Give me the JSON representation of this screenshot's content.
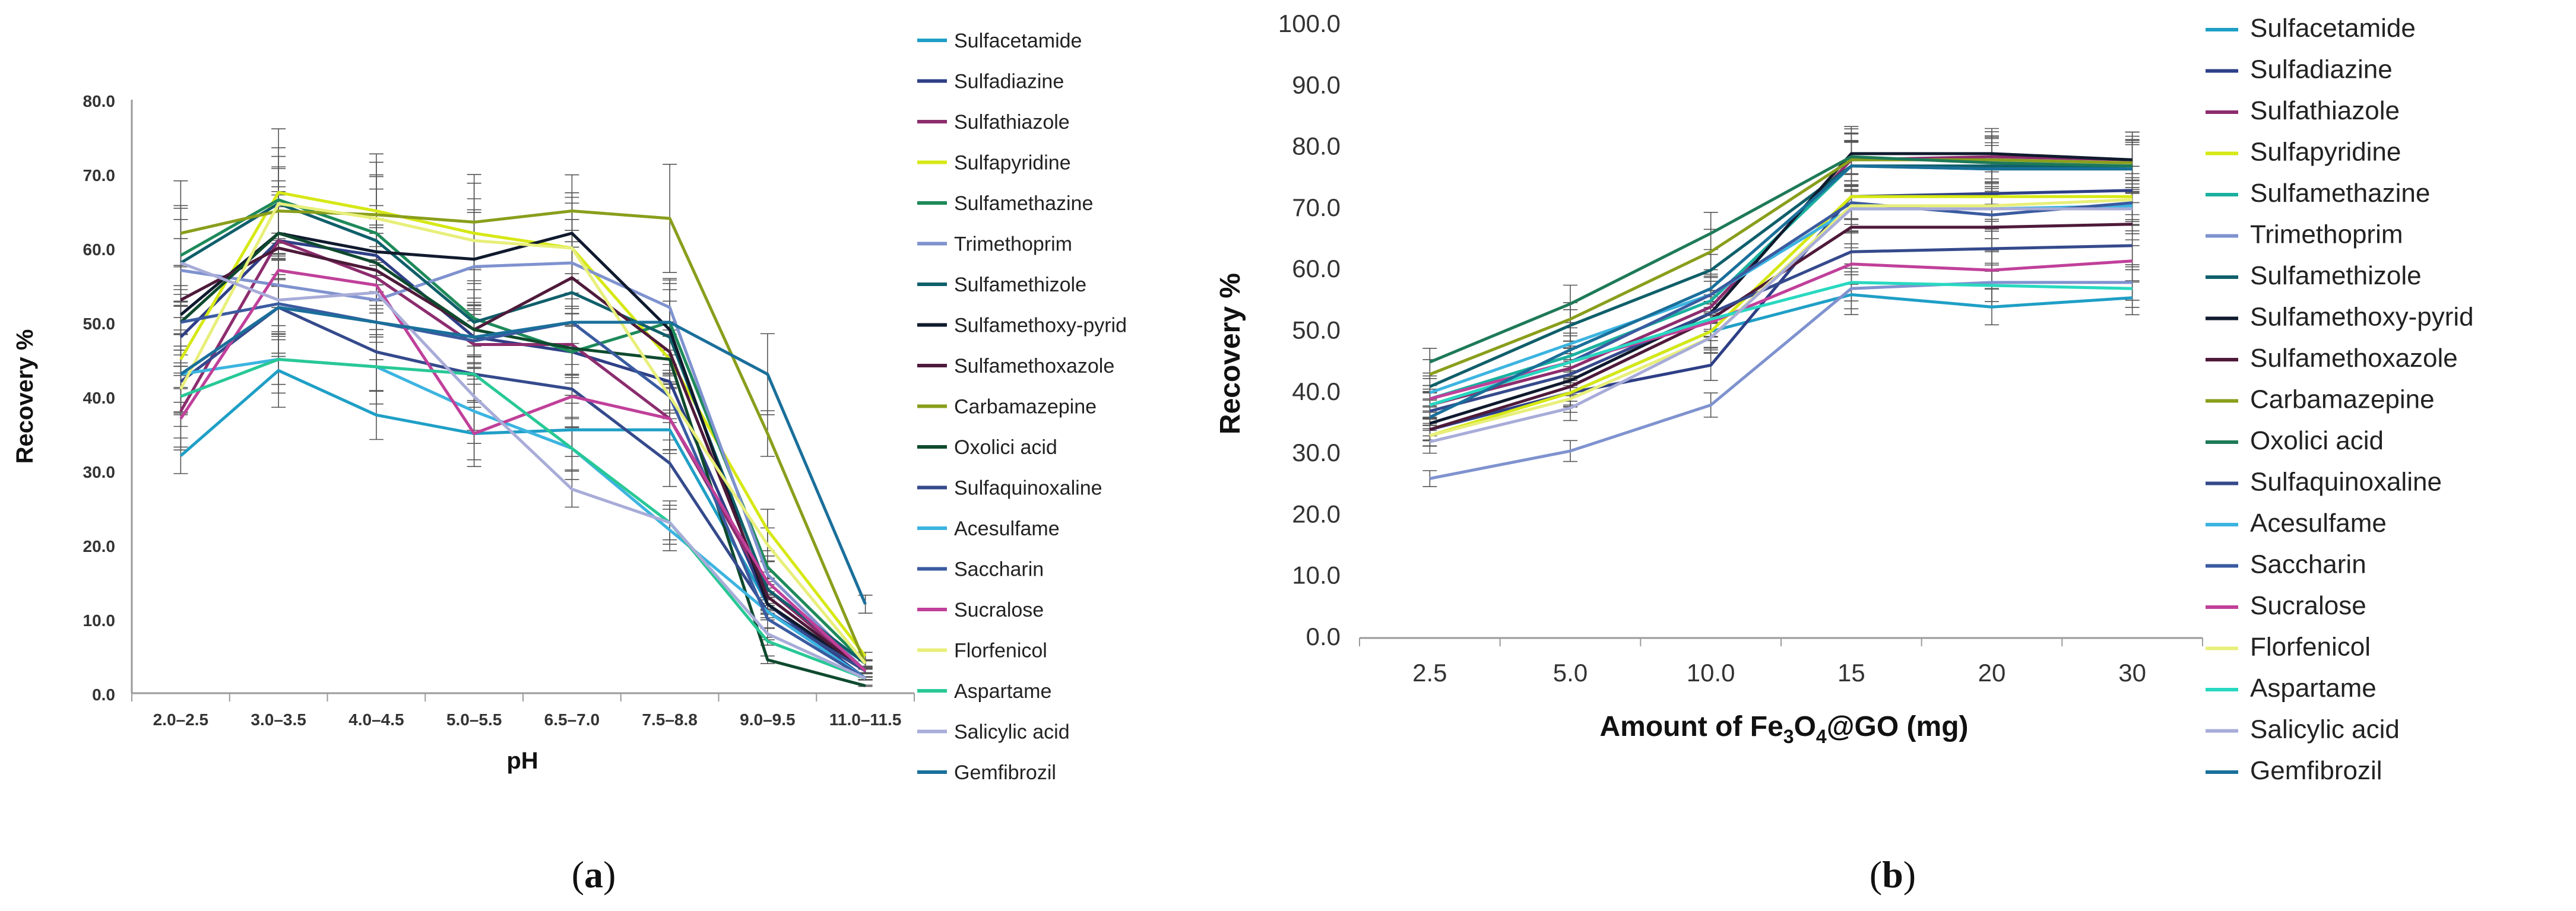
{
  "panels": [
    {
      "label_open": "(",
      "label_letter": "a",
      "label_close": ")"
    },
    {
      "label_open": "(",
      "label_letter": "b",
      "label_close": ")"
    }
  ],
  "chart_data": [
    {
      "type": "line",
      "title": "",
      "xlabel": "pH",
      "ylabel": "Recovery %",
      "ylim": [
        0,
        80
      ],
      "y_ticks": [
        "0.0",
        "10.0",
        "20.0",
        "30.0",
        "40.0",
        "50.0",
        "60.0",
        "70.0",
        "80.0"
      ],
      "categories": [
        "2.0–2.5",
        "3.0–3.5",
        "4.0–4.5",
        "5.0–5.5",
        "6.5–7.0",
        "7.5–8.8",
        "9.0–9.5",
        "11.0–11.5"
      ],
      "grid": false,
      "error_bars": true,
      "legend_position": "right",
      "series": [
        {
          "name": "Sulfacetamide",
          "color": "#1f9fc6",
          "values": [
            32,
            43.5,
            37.5,
            35,
            35.5,
            35.5,
            12,
            2
          ]
        },
        {
          "name": "Sulfadiazine",
          "color": "#2e3f86",
          "values": [
            48,
            61,
            59,
            48,
            46,
            42,
            12,
            2
          ]
        },
        {
          "name": "Sulfathiazole",
          "color": "#8c2d6e",
          "values": [
            38,
            61,
            56,
            47,
            47,
            37,
            14,
            3
          ]
        },
        {
          "name": "Sulfapyridine",
          "color": "#d6e815",
          "values": [
            45,
            67.5,
            65,
            62,
            60,
            45,
            22,
            5
          ]
        },
        {
          "name": "Sulfamethazine",
          "color": "#1e8a5a",
          "values": [
            59,
            66.5,
            62,
            50.5,
            46,
            50,
            17,
            4
          ]
        },
        {
          "name": "Trimethoprim",
          "color": "#7f92cf",
          "values": [
            57,
            55,
            53,
            57.5,
            58,
            52,
            16,
            3
          ]
        },
        {
          "name": "Sulfamethizole",
          "color": "#0f5f6a",
          "values": [
            58,
            66,
            61,
            50,
            54,
            48,
            14,
            4
          ]
        },
        {
          "name": "Sulfamethoxy-pyrid",
          "color": "#101a2e",
          "values": [
            51,
            62,
            59.5,
            58.5,
            62,
            49,
            12,
            3
          ]
        },
        {
          "name": "Sulfamethoxazole",
          "color": "#4e1a3a",
          "values": [
            53,
            60,
            57,
            49,
            56,
            46,
            13,
            3
          ]
        },
        {
          "name": "Carbamazepine",
          "color": "#8a9e1c",
          "values": [
            62,
            65,
            64.5,
            63.5,
            65,
            64,
            35,
            4
          ]
        },
        {
          "name": "Oxolici acid",
          "color": "#0e4a2e",
          "values": [
            50,
            62,
            58,
            49,
            46.5,
            45,
            4.5,
            1
          ]
        },
        {
          "name": "Sulfaquinoxaline",
          "color": "#354a8c",
          "values": [
            42,
            52,
            46,
            43,
            41,
            31,
            11,
            3
          ]
        },
        {
          "name": "Acesulfame",
          "color": "#3cb4e0",
          "values": [
            43,
            45,
            44,
            38,
            33,
            22,
            11,
            2
          ]
        },
        {
          "name": "Saccharin",
          "color": "#3a5ba0",
          "values": [
            50,
            52.5,
            50,
            47.5,
            50,
            40,
            10,
            2
          ]
        },
        {
          "name": "Sucralose",
          "color": "#c0409a",
          "values": [
            37,
            57,
            55,
            35,
            40,
            37,
            15,
            3
          ]
        },
        {
          "name": "Florfenicol",
          "color": "#e8ef7a",
          "values": [
            41,
            66,
            64,
            61,
            60,
            40,
            20,
            4
          ]
        },
        {
          "name": "Aspartame",
          "color": "#28c896",
          "values": [
            40,
            45,
            44,
            43,
            33,
            23,
            7,
            2
          ]
        },
        {
          "name": "Salicylic acid",
          "color": "#a8acd8",
          "values": [
            58,
            53,
            54,
            40,
            27.5,
            23,
            8,
            2
          ]
        },
        {
          "name": "Gemfibrozil",
          "color": "#1a6f9a",
          "values": [
            43,
            52,
            50,
            48,
            50,
            50,
            43,
            12
          ]
        }
      ]
    },
    {
      "type": "line",
      "title": "",
      "xlabel": "Amount of Fe3O4@GO (mg)",
      "xlabel_parts": {
        "pre": "Amount of Fe",
        "sub1": "3",
        "mid": "O",
        "sub2": "4",
        "post": "@GO (mg)"
      },
      "ylabel": "Recovery %",
      "ylim": [
        0,
        100
      ],
      "y_ticks": [
        "0.0",
        "10.0",
        "20.0",
        "30.0",
        "40.0",
        "50.0",
        "60.0",
        "70.0",
        "80.0",
        "90.0",
        "100.0"
      ],
      "categories": [
        "2.5",
        "5.0",
        "10.0",
        "15",
        "20",
        "30"
      ],
      "grid": false,
      "error_bars": true,
      "legend_position": "right",
      "series": [
        {
          "name": "Sulfacetamide",
          "color": "#1f9fc6",
          "values": [
            34,
            40,
            50,
            56,
            54,
            55.5
          ]
        },
        {
          "name": "Sulfadiazine",
          "color": "#2e3f86",
          "values": [
            34,
            40,
            44.5,
            72,
            72.5,
            73
          ]
        },
        {
          "name": "Sulfathiazole",
          "color": "#8c2d6e",
          "values": [
            38,
            44,
            54,
            78,
            78.5,
            78
          ]
        },
        {
          "name": "Sulfapyridine",
          "color": "#d6e815",
          "values": [
            33,
            40,
            50,
            72,
            72,
            72
          ]
        },
        {
          "name": "Sulfamethazine",
          "color": "#1ab0a0",
          "values": [
            39,
            46,
            55,
            77,
            76.5,
            77
          ]
        },
        {
          "name": "Trimethoprim",
          "color": "#7f92cf",
          "values": [
            26,
            30.5,
            38,
            57,
            58,
            58
          ]
        },
        {
          "name": "Sulfamethizole",
          "color": "#0f5f6a",
          "values": [
            41,
            51,
            60,
            77,
            77,
            77
          ]
        },
        {
          "name": "Sulfamethoxy-pyrid",
          "color": "#101a2e",
          "values": [
            35,
            42,
            53,
            79,
            79,
            78
          ]
        },
        {
          "name": "Sulfamethoxazole",
          "color": "#4e1a3a",
          "values": [
            34,
            41,
            52,
            67,
            67,
            67.5
          ]
        },
        {
          "name": "Carbamazepine",
          "color": "#8a9e1c",
          "values": [
            43,
            52,
            63,
            78,
            78,
            77.5
          ]
        },
        {
          "name": "Oxolici acid",
          "color": "#1e7a58",
          "values": [
            45,
            54.5,
            66,
            78.5,
            77.5,
            77
          ]
        },
        {
          "name": "Sulfaquinoxaline",
          "color": "#354a8c",
          "values": [
            37,
            43,
            53,
            63,
            63.5,
            64
          ]
        },
        {
          "name": "Acesulfame",
          "color": "#3cb4e0",
          "values": [
            40,
            48,
            56,
            70,
            70,
            70.5
          ]
        },
        {
          "name": "Saccharin",
          "color": "#3a5ba0",
          "values": [
            38,
            45,
            56,
            71,
            69,
            71
          ]
        },
        {
          "name": "Sucralose",
          "color": "#c0409a",
          "values": [
            39,
            45,
            51.5,
            61,
            60,
            61.5
          ]
        },
        {
          "name": "Florfenicol",
          "color": "#e8ef7a",
          "values": [
            33,
            39,
            49,
            70.5,
            70.5,
            71.5
          ]
        },
        {
          "name": "Aspartame",
          "color": "#28d8c0",
          "values": [
            38,
            45,
            52,
            58,
            57.5,
            57
          ]
        },
        {
          "name": "Salicylic acid",
          "color": "#a8acd8",
          "values": [
            32,
            37.5,
            49,
            70,
            70,
            70
          ]
        },
        {
          "name": "Gemfibrozil",
          "color": "#1a6f9a",
          "values": [
            36,
            47,
            57,
            77,
            76.5,
            76.5
          ]
        }
      ]
    }
  ]
}
